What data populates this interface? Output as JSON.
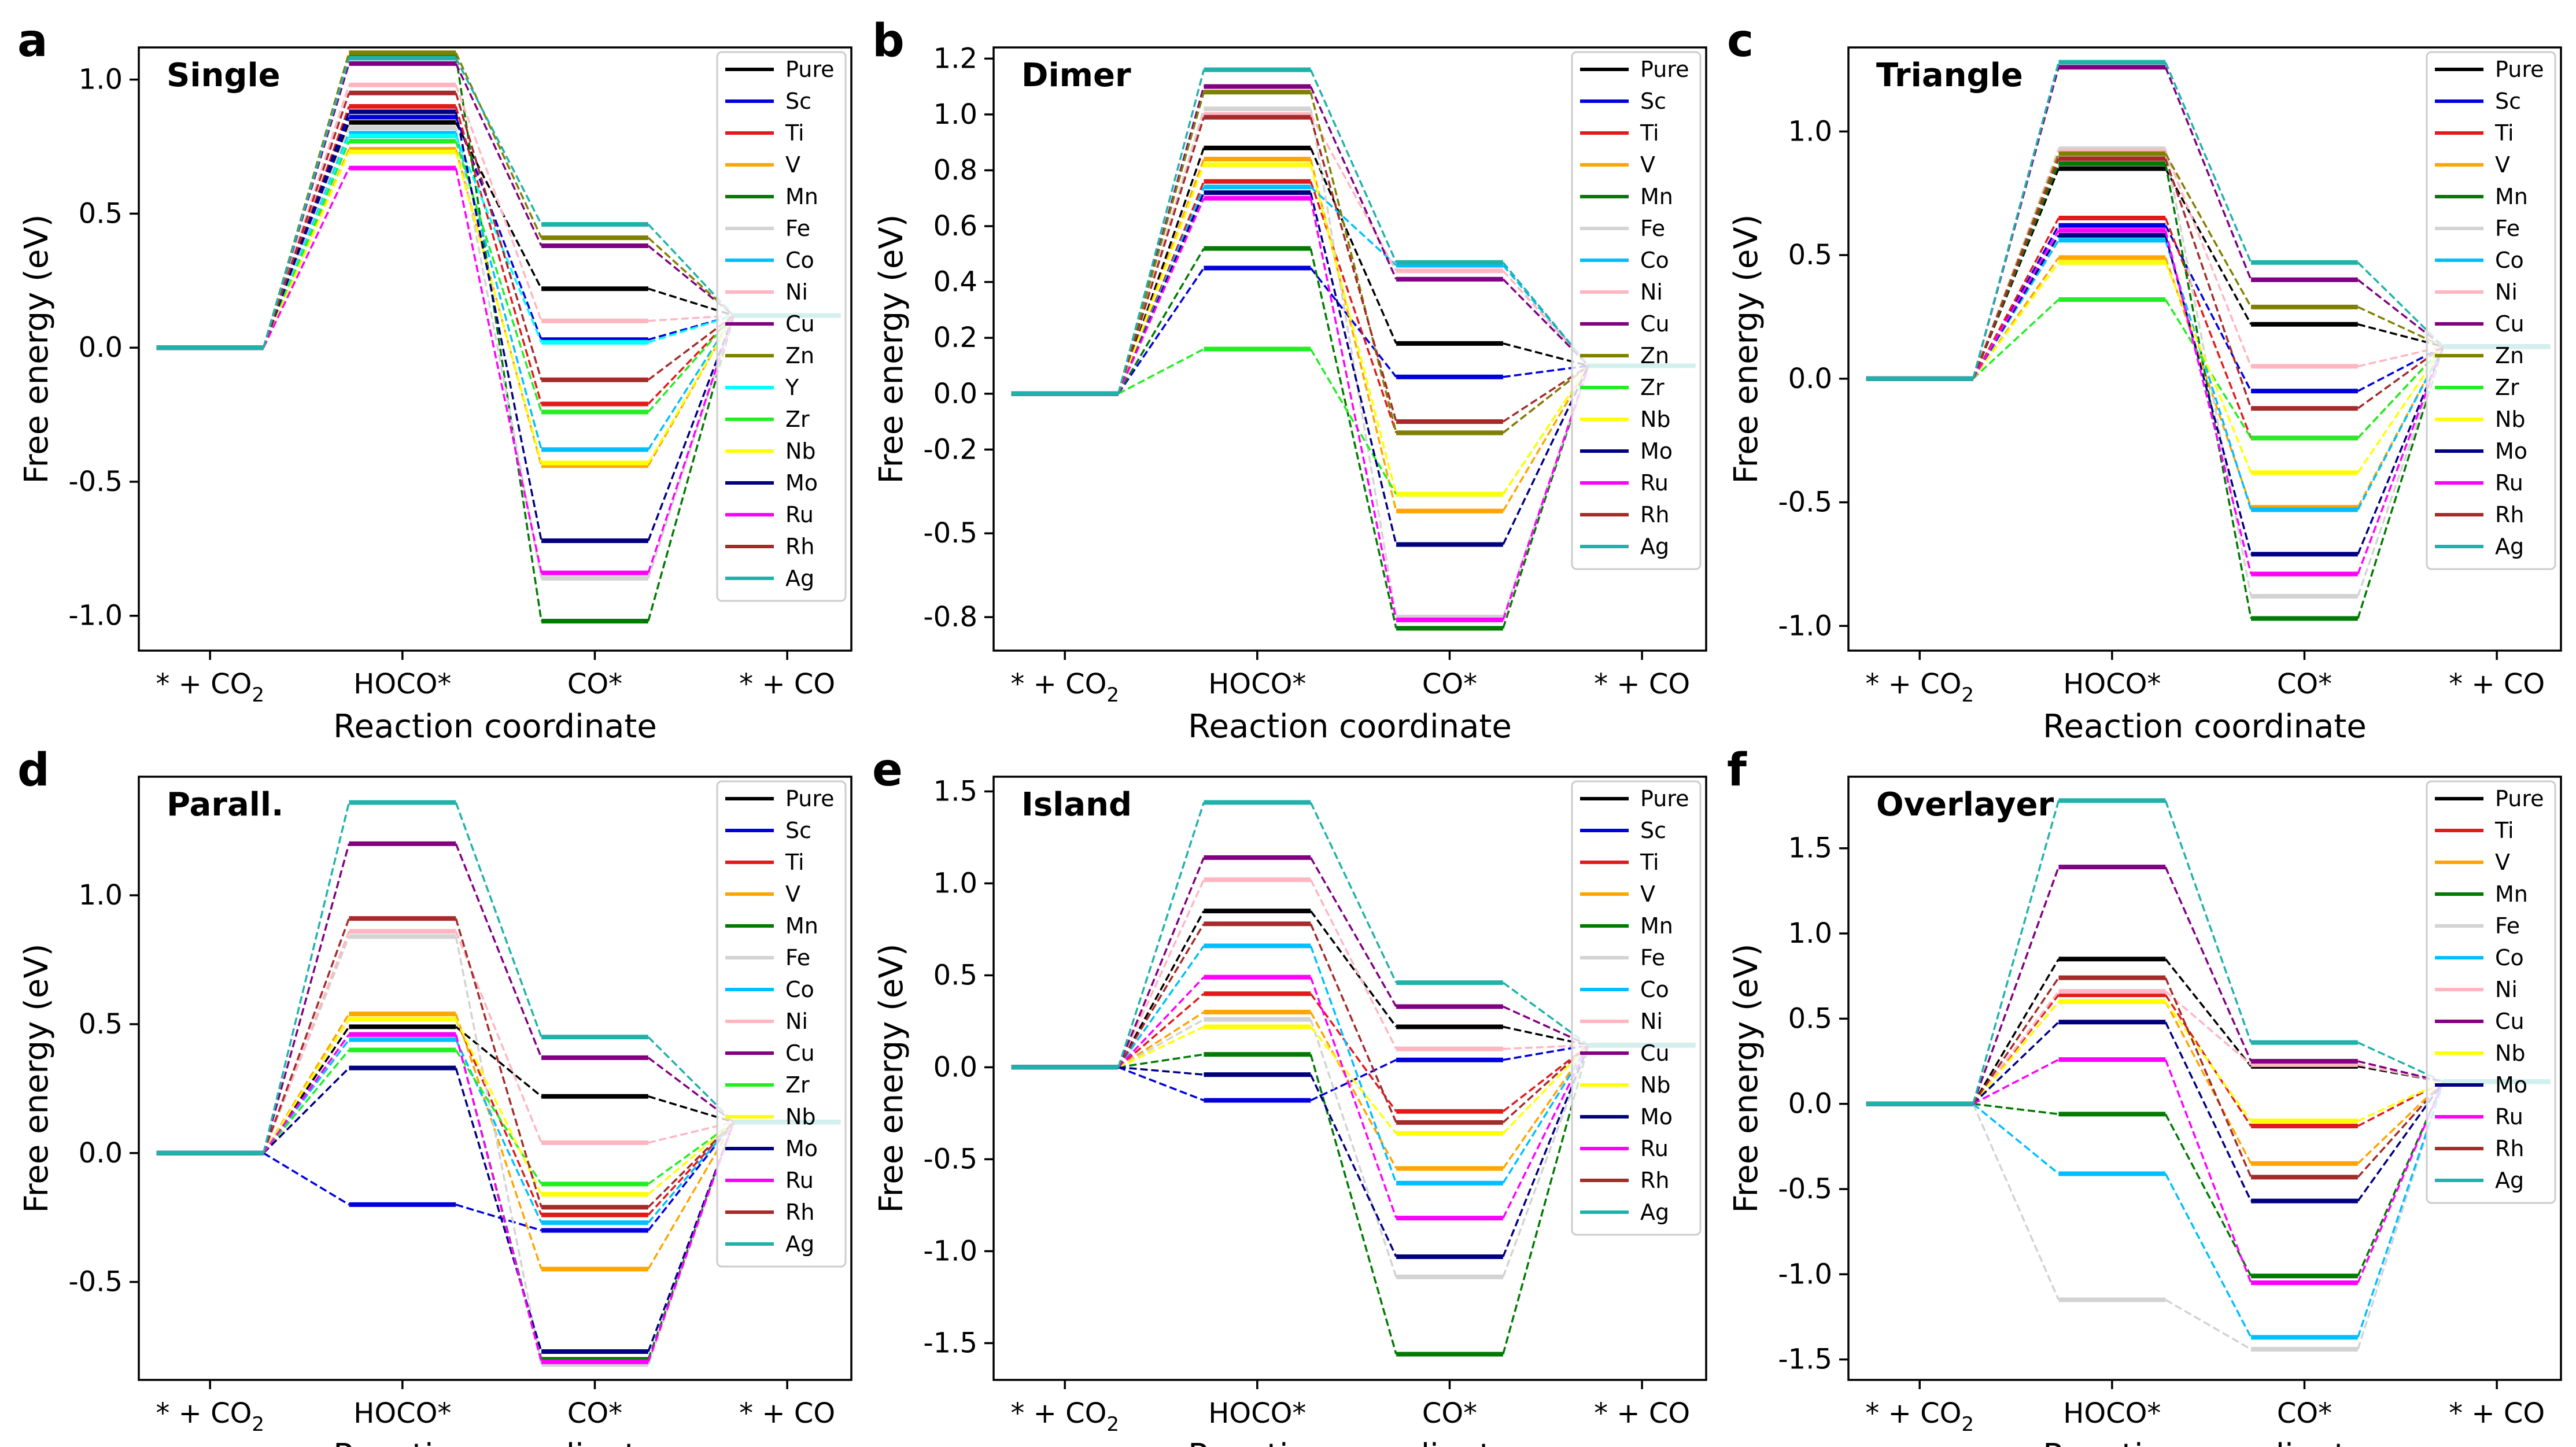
{
  "colors": {
    "Pure": "#000000",
    "Sc": "#0000dd",
    "Ti": "#e31a1c",
    "V": "#ffa500",
    "Mn": "#007a00",
    "Fe": "#d3d3d3",
    "Co": "#00bfff",
    "Ni": "#ffb6c1",
    "Cu": "#800080",
    "Zn": "#808000",
    "Y": "#00ffff",
    "Zr": "#22ee22",
    "Nb": "#ffff00",
    "Mo": "#000080",
    "Ru": "#ff00ff",
    "Rh": "#a52a2a",
    "Ag": "#20b2aa"
  },
  "x_label": "Reaction coordinate",
  "y_label": "Free energy (eV)",
  "categories": [
    "* + CO2",
    "HOCO*",
    "CO*",
    "* + CO"
  ],
  "chart_data": [
    {
      "type": "line",
      "panel_letter": "a",
      "title": "Single",
      "xlabel": "Reaction coordinate",
      "ylabel": "Free energy (eV)",
      "ylim": [
        -1.13,
        1.12
      ],
      "yticks": [
        1.0,
        0.5,
        0.0,
        -0.5,
        -1.0
      ],
      "ytick_labels": [
        "1.0",
        "0.5",
        "0.0",
        "-0.5",
        "-1.0"
      ],
      "legend": [
        "Pure",
        "Sc",
        "Ti",
        "V",
        "Mn",
        "Fe",
        "Co",
        "Ni",
        "Cu",
        "Zn",
        "Y",
        "Zr",
        "Nb",
        "Mo",
        "Ru",
        "Rh",
        "Ag"
      ],
      "series": [
        {
          "name": "Pure",
          "values": [
            0,
            0.84,
            0.22,
            0.12
          ]
        },
        {
          "name": "Sc",
          "values": [
            0,
            0.86,
            0.03,
            0.12
          ]
        },
        {
          "name": "Ti",
          "values": [
            0,
            0.9,
            -0.21,
            0.12
          ]
        },
        {
          "name": "V",
          "values": [
            0,
            0.74,
            -0.44,
            0.12
          ]
        },
        {
          "name": "Mn",
          "values": [
            0,
            1.09,
            -1.02,
            0.12
          ]
        },
        {
          "name": "Fe",
          "values": [
            0,
            0.82,
            -0.86,
            0.12
          ]
        },
        {
          "name": "Co",
          "values": [
            0,
            0.8,
            -0.38,
            0.12
          ]
        },
        {
          "name": "Ni",
          "values": [
            0,
            0.98,
            0.1,
            0.12
          ]
        },
        {
          "name": "Cu",
          "values": [
            0,
            1.06,
            0.38,
            0.12
          ]
        },
        {
          "name": "Zn",
          "values": [
            0,
            1.1,
            0.41,
            0.12
          ]
        },
        {
          "name": "Y",
          "values": [
            0,
            0.79,
            0.02,
            0.12
          ]
        },
        {
          "name": "Zr",
          "values": [
            0,
            0.77,
            -0.24,
            0.12
          ]
        },
        {
          "name": "Nb",
          "values": [
            0,
            0.73,
            -0.43,
            0.12
          ]
        },
        {
          "name": "Mo",
          "values": [
            0,
            0.88,
            -0.72,
            0.12
          ]
        },
        {
          "name": "Ru",
          "values": [
            0,
            0.67,
            -0.84,
            0.12
          ]
        },
        {
          "name": "Rh",
          "values": [
            0,
            0.95,
            -0.12,
            0.12
          ]
        },
        {
          "name": "Ag",
          "values": [
            0,
            1.08,
            0.46,
            0.12
          ]
        }
      ]
    },
    {
      "type": "line",
      "panel_letter": "b",
      "title": "Dimer",
      "xlabel": "Reaction coordinate",
      "ylabel": "Free energy (eV)",
      "ylim": [
        -0.92,
        1.24
      ],
      "yticks": [
        1.2,
        1.0,
        0.8,
        0.6,
        0.4,
        0.2,
        0.0,
        -0.2,
        -0.5,
        -0.8
      ],
      "ytick_labels": [
        "1.2",
        "1.0",
        "0.8",
        "0.6",
        "0.4",
        "0.2",
        "0.0",
        "-0.2",
        "-0.5",
        "-0.8"
      ],
      "legend": [
        "Pure",
        "Sc",
        "Ti",
        "V",
        "Mn",
        "Fe",
        "Co",
        "Ni",
        "Cu",
        "Zn",
        "Zr",
        "Nb",
        "Mo",
        "Ru",
        "Rh",
        "Ag"
      ],
      "series": [
        {
          "name": "Pure",
          "values": [
            0,
            0.88,
            0.18,
            0.1
          ]
        },
        {
          "name": "Sc",
          "values": [
            0,
            0.45,
            0.06,
            0.1
          ]
        },
        {
          "name": "Ti",
          "values": [
            0,
            0.76,
            -0.14,
            0.1
          ]
        },
        {
          "name": "V",
          "values": [
            0,
            0.84,
            -0.42,
            0.1
          ]
        },
        {
          "name": "Mn",
          "values": [
            0,
            0.52,
            -0.84,
            0.1
          ]
        },
        {
          "name": "Fe",
          "values": [
            0,
            1.02,
            -0.8,
            0.1
          ]
        },
        {
          "name": "Co",
          "values": [
            0,
            0.74,
            0.46,
            0.1
          ]
        },
        {
          "name": "Ni",
          "values": [
            0,
            1.0,
            0.44,
            0.1
          ]
        },
        {
          "name": "Cu",
          "values": [
            0,
            1.1,
            0.41,
            0.1
          ]
        },
        {
          "name": "Zn",
          "values": [
            0,
            1.08,
            -0.14,
            0.1
          ]
        },
        {
          "name": "Zr",
          "values": [
            0,
            0.16,
            -0.36,
            0.1
          ]
        },
        {
          "name": "Nb",
          "values": [
            0,
            0.82,
            -0.36,
            0.1
          ]
        },
        {
          "name": "Mo",
          "values": [
            0,
            0.72,
            -0.54,
            0.1
          ]
        },
        {
          "name": "Ru",
          "values": [
            0,
            0.7,
            -0.81,
            0.1
          ]
        },
        {
          "name": "Rh",
          "values": [
            0,
            0.99,
            -0.1,
            0.1
          ]
        },
        {
          "name": "Ag",
          "values": [
            0,
            1.16,
            0.47,
            0.1
          ]
        }
      ]
    },
    {
      "type": "line",
      "panel_letter": "c",
      "title": "Triangle",
      "xlabel": "Reaction coordinate",
      "ylabel": "Free energy (eV)",
      "ylim": [
        -1.1,
        1.34
      ],
      "yticks": [
        1.0,
        0.5,
        0.0,
        -0.5,
        -1.0
      ],
      "ytick_labels": [
        "1.0",
        "0.5",
        "0.0",
        "-0.5",
        "-1.0"
      ],
      "legend": [
        "Pure",
        "Sc",
        "Ti",
        "V",
        "Mn",
        "Fe",
        "Co",
        "Ni",
        "Cu",
        "Zn",
        "Zr",
        "Nb",
        "Mo",
        "Ru",
        "Rh",
        "Ag"
      ],
      "series": [
        {
          "name": "Pure",
          "values": [
            0,
            0.85,
            0.22,
            0.13
          ]
        },
        {
          "name": "Sc",
          "values": [
            0,
            0.62,
            -0.05,
            0.13
          ]
        },
        {
          "name": "Ti",
          "values": [
            0,
            0.65,
            -0.24,
            0.13
          ]
        },
        {
          "name": "V",
          "values": [
            0,
            0.49,
            -0.52,
            0.13
          ]
        },
        {
          "name": "Mn",
          "values": [
            0,
            0.87,
            -0.97,
            0.13
          ]
        },
        {
          "name": "Fe",
          "values": [
            0,
            0.93,
            -0.88,
            0.13
          ]
        },
        {
          "name": "Co",
          "values": [
            0,
            0.56,
            -0.53,
            0.13
          ]
        },
        {
          "name": "Ni",
          "values": [
            0,
            0.92,
            0.05,
            0.13
          ]
        },
        {
          "name": "Cu",
          "values": [
            0,
            1.26,
            0.4,
            0.13
          ]
        },
        {
          "name": "Zn",
          "values": [
            0,
            0.91,
            0.29,
            0.13
          ]
        },
        {
          "name": "Zr",
          "values": [
            0,
            0.32,
            -0.24,
            0.13
          ]
        },
        {
          "name": "Nb",
          "values": [
            0,
            0.47,
            -0.38,
            0.13
          ]
        },
        {
          "name": "Mo",
          "values": [
            0,
            0.58,
            -0.71,
            0.13
          ]
        },
        {
          "name": "Ru",
          "values": [
            0,
            0.6,
            -0.79,
            0.13
          ]
        },
        {
          "name": "Rh",
          "values": [
            0,
            0.89,
            -0.12,
            0.13
          ]
        },
        {
          "name": "Ag",
          "values": [
            0,
            1.28,
            0.47,
            0.13
          ]
        }
      ]
    },
    {
      "type": "line",
      "panel_letter": "d",
      "title": "Parall.",
      "xlabel": "Reaction coordinate",
      "ylabel": "Free energy (eV)",
      "ylim": [
        -0.88,
        1.46
      ],
      "yticks": [
        1.0,
        0.5,
        0.0,
        -0.5
      ],
      "ytick_labels": [
        "1.0",
        "0.5",
        "0.0",
        "-0.5"
      ],
      "legend": [
        "Pure",
        "Sc",
        "Ti",
        "V",
        "Mn",
        "Fe",
        "Co",
        "Ni",
        "Cu",
        "Zr",
        "Nb",
        "Mo",
        "Ru",
        "Rh",
        "Ag"
      ],
      "series": [
        {
          "name": "Pure",
          "values": [
            0,
            0.49,
            0.22,
            0.12
          ]
        },
        {
          "name": "Sc",
          "values": [
            0,
            -0.2,
            -0.3,
            0.12
          ]
        },
        {
          "name": "Ti",
          "values": [
            0,
            0.52,
            -0.24,
            0.12
          ]
        },
        {
          "name": "V",
          "values": [
            0,
            0.54,
            -0.45,
            0.12
          ]
        },
        {
          "name": "Mn",
          "values": [
            0,
            0.46,
            -0.8,
            0.12
          ]
        },
        {
          "name": "Fe",
          "values": [
            0,
            0.84,
            -0.82,
            0.12
          ]
        },
        {
          "name": "Co",
          "values": [
            0,
            0.44,
            -0.27,
            0.12
          ]
        },
        {
          "name": "Ni",
          "values": [
            0,
            0.86,
            0.04,
            0.12
          ]
        },
        {
          "name": "Cu",
          "values": [
            0,
            1.2,
            0.37,
            0.12
          ]
        },
        {
          "name": "Zr",
          "values": [
            0,
            0.4,
            -0.12,
            0.12
          ]
        },
        {
          "name": "Nb",
          "values": [
            0,
            0.52,
            -0.16,
            0.12
          ]
        },
        {
          "name": "Mo",
          "values": [
            0,
            0.33,
            -0.77,
            0.12
          ]
        },
        {
          "name": "Ru",
          "values": [
            0,
            0.46,
            -0.81,
            0.12
          ]
        },
        {
          "name": "Rh",
          "values": [
            0,
            0.91,
            -0.21,
            0.12
          ]
        },
        {
          "name": "Ag",
          "values": [
            0,
            1.36,
            0.45,
            0.12
          ]
        }
      ]
    },
    {
      "type": "line",
      "panel_letter": "e",
      "title": "Island",
      "xlabel": "Reaction coordinate",
      "ylabel": "Free energy (eV)",
      "ylim": [
        -1.7,
        1.58
      ],
      "yticks": [
        1.5,
        1.0,
        0.5,
        0.0,
        -0.5,
        -1.0,
        -1.5
      ],
      "ytick_labels": [
        "1.5",
        "1.0",
        "0.5",
        "0.0",
        "-0.5",
        "-1.0",
        "-1.5"
      ],
      "legend": [
        "Pure",
        "Sc",
        "Ti",
        "V",
        "Mn",
        "Fe",
        "Co",
        "Ni",
        "Cu",
        "Nb",
        "Mo",
        "Ru",
        "Rh",
        "Ag"
      ],
      "series": [
        {
          "name": "Pure",
          "values": [
            0,
            0.85,
            0.22,
            0.12
          ]
        },
        {
          "name": "Sc",
          "values": [
            0,
            -0.18,
            0.04,
            0.12
          ]
        },
        {
          "name": "Ti",
          "values": [
            0,
            0.4,
            -0.24,
            0.12
          ]
        },
        {
          "name": "V",
          "values": [
            0,
            0.3,
            -0.55,
            0.12
          ]
        },
        {
          "name": "Mn",
          "values": [
            0,
            0.07,
            -1.56,
            0.12
          ]
        },
        {
          "name": "Fe",
          "values": [
            0,
            0.26,
            -1.14,
            0.12
          ]
        },
        {
          "name": "Co",
          "values": [
            0,
            0.66,
            -0.63,
            0.12
          ]
        },
        {
          "name": "Ni",
          "values": [
            0,
            1.02,
            0.1,
            0.12
          ]
        },
        {
          "name": "Cu",
          "values": [
            0,
            1.14,
            0.33,
            0.12
          ]
        },
        {
          "name": "Nb",
          "values": [
            0,
            0.22,
            -0.36,
            0.12
          ]
        },
        {
          "name": "Mo",
          "values": [
            0,
            -0.04,
            -1.03,
            0.12
          ]
        },
        {
          "name": "Ru",
          "values": [
            0,
            0.49,
            -0.82,
            0.12
          ]
        },
        {
          "name": "Rh",
          "values": [
            0,
            0.78,
            -0.3,
            0.12
          ]
        },
        {
          "name": "Ag",
          "values": [
            0,
            1.44,
            0.46,
            0.12
          ]
        }
      ]
    },
    {
      "type": "line",
      "panel_letter": "f",
      "title": "Overlayer",
      "xlabel": "Reaction coordinate",
      "ylabel": "Free energy (eV)",
      "ylim": [
        -1.62,
        1.92
      ],
      "yticks": [
        1.5,
        1.0,
        0.5,
        0.0,
        -0.5,
        -1.0,
        -1.5
      ],
      "ytick_labels": [
        "1.5",
        "1.0",
        "0.5",
        "0.0",
        "-0.5",
        "-1.0",
        "-1.5"
      ],
      "legend": [
        "Pure",
        "Ti",
        "V",
        "Mn",
        "Fe",
        "Co",
        "Ni",
        "Cu",
        "Nb",
        "Mo",
        "Ru",
        "Rh",
        "Ag"
      ],
      "series": [
        {
          "name": "Pure",
          "values": [
            0,
            0.85,
            0.22,
            0.13
          ]
        },
        {
          "name": "Ti",
          "values": [
            0,
            0.64,
            -0.13,
            0.13
          ]
        },
        {
          "name": "V",
          "values": [
            0,
            0.6,
            -0.35,
            0.13
          ]
        },
        {
          "name": "Mn",
          "values": [
            0,
            -0.06,
            -1.01,
            0.13
          ]
        },
        {
          "name": "Fe",
          "values": [
            0,
            -1.15,
            -1.44,
            0.13
          ]
        },
        {
          "name": "Co",
          "values": [
            0,
            -0.41,
            -1.37,
            0.13
          ]
        },
        {
          "name": "Ni",
          "values": [
            0,
            0.66,
            0.23,
            0.13
          ]
        },
        {
          "name": "Cu",
          "values": [
            0,
            1.39,
            0.25,
            0.13
          ]
        },
        {
          "name": "Nb",
          "values": [
            0,
            0.6,
            -0.1,
            0.13
          ]
        },
        {
          "name": "Mo",
          "values": [
            0,
            0.48,
            -0.57,
            0.13
          ]
        },
        {
          "name": "Ru",
          "values": [
            0,
            0.26,
            -1.05,
            0.13
          ]
        },
        {
          "name": "Rh",
          "values": [
            0,
            0.74,
            -0.43,
            0.13
          ]
        },
        {
          "name": "Ag",
          "values": [
            0,
            1.78,
            0.36,
            0.13
          ]
        }
      ]
    }
  ]
}
